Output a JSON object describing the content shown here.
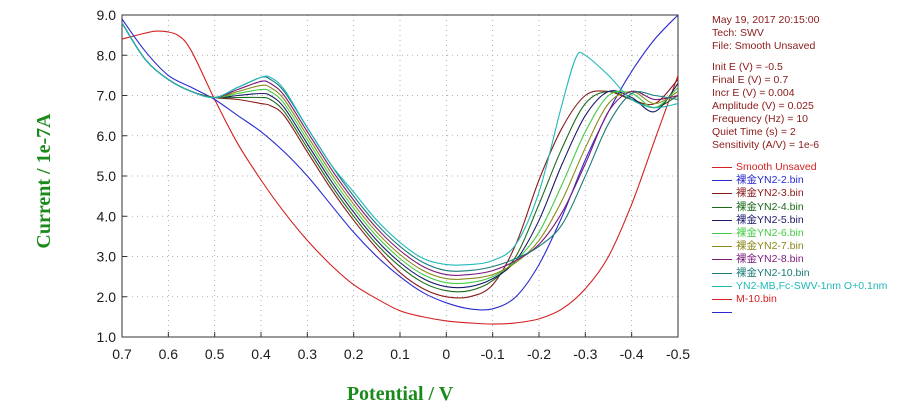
{
  "info": {
    "lines": [
      "May 19, 2017   20:15:00",
      "Tech: SWV",
      "File: Smooth Unsaved"
    ],
    "params": [
      "Init E (V) = -0.5",
      "Final E (V) = 0.7",
      "Incr E (V) = 0.004",
      "Amplitude (V) = 0.025",
      "Frequency (Hz) = 10",
      "Quiet Time (s) = 2",
      "Sensitivity (A/V) = 1e-6"
    ]
  },
  "footer": {
    "text": ""
  },
  "chart_data": {
    "type": "line",
    "xlabel": "Potential / V",
    "ylabel": "Current / 1e-7A",
    "xlim": [
      0.7,
      -0.5
    ],
    "ylim": [
      1.0,
      9.0
    ],
    "x_ticks": [
      "0.7",
      "0.6",
      "0.5",
      "0.4",
      "0.3",
      "0.2",
      "0.1",
      "0",
      "-0.1",
      "-0.2",
      "-0.3",
      "-0.4",
      "-0.5"
    ],
    "y_ticks": [
      "1.0",
      "2.0",
      "3.0",
      "4.0",
      "5.0",
      "6.0",
      "7.0",
      "8.0",
      "9.0"
    ],
    "grid": true,
    "legend_position": "right",
    "series": [
      {
        "name": "Smooth Unsaved",
        "color": "#d42020",
        "x": [
          0.7,
          0.65,
          0.62,
          0.58,
          0.55,
          0.5,
          0.45,
          0.4,
          0.35,
          0.3,
          0.25,
          0.2,
          0.15,
          0.1,
          0.05,
          0,
          -0.05,
          -0.1,
          -0.15,
          -0.2,
          -0.25,
          -0.3,
          -0.35,
          -0.4,
          -0.45,
          -0.5
        ],
        "y": [
          8.4,
          8.55,
          8.6,
          8.5,
          8.1,
          6.9,
          5.8,
          4.9,
          4.1,
          3.4,
          2.8,
          2.3,
          1.95,
          1.65,
          1.5,
          1.4,
          1.35,
          1.32,
          1.35,
          1.45,
          1.7,
          2.2,
          3.0,
          4.3,
          5.9,
          7.5
        ]
      },
      {
        "name": "裸金YN2-2.bin",
        "color": "#2a2ad0",
        "x": [
          0.7,
          0.65,
          0.6,
          0.55,
          0.5,
          0.45,
          0.4,
          0.35,
          0.3,
          0.25,
          0.2,
          0.15,
          0.1,
          0.05,
          0,
          -0.05,
          -0.1,
          -0.15,
          -0.2,
          -0.25,
          -0.3,
          -0.35,
          -0.4,
          -0.45,
          -0.5
        ],
        "y": [
          8.9,
          8.1,
          7.5,
          7.2,
          6.9,
          6.5,
          6.1,
          5.6,
          5.0,
          4.3,
          3.6,
          3.0,
          2.5,
          2.1,
          1.85,
          1.7,
          1.7,
          2.0,
          2.8,
          4.0,
          5.4,
          6.6,
          7.6,
          8.4,
          9.0
        ]
      },
      {
        "name": "裸金YN2-3.bin",
        "color": "#8b1a1a",
        "x": [
          0.7,
          0.65,
          0.6,
          0.55,
          0.5,
          0.45,
          0.4,
          0.38,
          0.35,
          0.3,
          0.25,
          0.2,
          0.15,
          0.1,
          0.05,
          0,
          -0.05,
          -0.1,
          -0.15,
          -0.2,
          -0.25,
          -0.3,
          -0.35,
          -0.4,
          -0.45,
          -0.5
        ],
        "y": [
          8.8,
          7.9,
          7.4,
          7.1,
          6.95,
          6.9,
          6.8,
          6.75,
          6.5,
          5.6,
          4.7,
          3.9,
          3.2,
          2.6,
          2.2,
          2.0,
          2.0,
          2.3,
          3.3,
          4.9,
          6.2,
          7.0,
          7.1,
          6.9,
          6.8,
          7.4
        ]
      },
      {
        "name": "裸金YN2-4.bin",
        "color": "#1a6a1a",
        "x": [
          0.7,
          0.65,
          0.6,
          0.55,
          0.5,
          0.45,
          0.4,
          0.38,
          0.35,
          0.3,
          0.25,
          0.2,
          0.15,
          0.1,
          0.05,
          0,
          -0.05,
          -0.1,
          -0.15,
          -0.2,
          -0.25,
          -0.3,
          -0.35,
          -0.4,
          -0.45,
          -0.5
        ],
        "y": [
          8.8,
          7.9,
          7.4,
          7.1,
          6.95,
          6.95,
          6.95,
          6.9,
          6.6,
          5.7,
          4.8,
          4.0,
          3.3,
          2.75,
          2.35,
          2.15,
          2.15,
          2.4,
          3.0,
          4.3,
          5.7,
          6.8,
          7.1,
          6.9,
          6.7,
          7.0
        ]
      },
      {
        "name": "裸金YN2-5.bin",
        "color": "#1a1a6a",
        "x": [
          0.7,
          0.65,
          0.6,
          0.55,
          0.5,
          0.45,
          0.4,
          0.38,
          0.35,
          0.3,
          0.25,
          0.2,
          0.15,
          0.1,
          0.05,
          0,
          -0.05,
          -0.1,
          -0.15,
          -0.2,
          -0.25,
          -0.3,
          -0.35,
          -0.4,
          -0.45,
          -0.5
        ],
        "y": [
          8.8,
          7.9,
          7.4,
          7.1,
          6.95,
          7.0,
          7.05,
          7.0,
          6.7,
          5.8,
          4.9,
          4.1,
          3.4,
          2.85,
          2.45,
          2.25,
          2.25,
          2.45,
          2.9,
          3.9,
          5.3,
          6.5,
          7.1,
          6.95,
          6.6,
          7.3
        ]
      },
      {
        "name": "裸金YN2-6.bin",
        "color": "#44cc44",
        "x": [
          0.7,
          0.65,
          0.6,
          0.55,
          0.5,
          0.45,
          0.4,
          0.38,
          0.35,
          0.3,
          0.25,
          0.2,
          0.15,
          0.1,
          0.05,
          0,
          -0.05,
          -0.1,
          -0.15,
          -0.2,
          -0.25,
          -0.3,
          -0.35,
          -0.4,
          -0.45,
          -0.5
        ],
        "y": [
          8.8,
          7.9,
          7.4,
          7.1,
          6.95,
          7.05,
          7.15,
          7.1,
          6.8,
          5.9,
          5.0,
          4.2,
          3.5,
          2.95,
          2.55,
          2.35,
          2.35,
          2.5,
          2.9,
          3.6,
          4.8,
          6.1,
          7.0,
          7.05,
          6.7,
          7.2
        ]
      },
      {
        "name": "裸金YN2-7.bin",
        "color": "#8a8a1a",
        "x": [
          0.7,
          0.65,
          0.6,
          0.55,
          0.5,
          0.45,
          0.4,
          0.38,
          0.35,
          0.3,
          0.25,
          0.2,
          0.15,
          0.1,
          0.05,
          0,
          -0.05,
          -0.1,
          -0.15,
          -0.2,
          -0.25,
          -0.3,
          -0.35,
          -0.4,
          -0.45,
          -0.5
        ],
        "y": [
          8.8,
          7.9,
          7.4,
          7.1,
          6.95,
          7.1,
          7.25,
          7.2,
          6.9,
          6.0,
          5.1,
          4.3,
          3.6,
          3.05,
          2.65,
          2.45,
          2.45,
          2.55,
          2.85,
          3.4,
          4.4,
          5.7,
          6.8,
          7.1,
          6.8,
          7.1
        ]
      },
      {
        "name": "裸金YN2-8.bin",
        "color": "#7a1a7a",
        "x": [
          0.7,
          0.65,
          0.6,
          0.55,
          0.5,
          0.45,
          0.4,
          0.38,
          0.35,
          0.3,
          0.25,
          0.2,
          0.15,
          0.1,
          0.05,
          0,
          -0.05,
          -0.1,
          -0.15,
          -0.2,
          -0.25,
          -0.3,
          -0.35,
          -0.4,
          -0.45,
          -0.5
        ],
        "y": [
          8.8,
          7.9,
          7.4,
          7.1,
          6.95,
          7.15,
          7.35,
          7.3,
          7.0,
          6.1,
          5.2,
          4.4,
          3.7,
          3.15,
          2.75,
          2.55,
          2.55,
          2.65,
          2.9,
          3.3,
          4.1,
          5.3,
          6.6,
          7.1,
          6.9,
          7.0
        ]
      },
      {
        "name": "裸金YN2-10.bin",
        "color": "#1a7a7a",
        "x": [
          0.7,
          0.65,
          0.6,
          0.55,
          0.5,
          0.45,
          0.4,
          0.38,
          0.35,
          0.3,
          0.25,
          0.2,
          0.15,
          0.1,
          0.05,
          0,
          -0.05,
          -0.1,
          -0.15,
          -0.2,
          -0.25,
          -0.3,
          -0.35,
          -0.4,
          -0.45,
          -0.5
        ],
        "y": [
          8.8,
          7.9,
          7.4,
          7.1,
          6.95,
          7.2,
          7.45,
          7.4,
          7.1,
          6.2,
          5.3,
          4.5,
          3.8,
          3.25,
          2.85,
          2.65,
          2.65,
          2.75,
          2.95,
          3.25,
          3.8,
          5.0,
          6.3,
          7.05,
          7.0,
          6.9
        ]
      },
      {
        "name": "YN2-MB,Fc-SWV-1nm O+0.1nm",
        "color": "#20b8b8",
        "x": [
          0.7,
          0.65,
          0.6,
          0.55,
          0.5,
          0.45,
          0.4,
          0.38,
          0.35,
          0.3,
          0.25,
          0.2,
          0.15,
          0.1,
          0.05,
          0,
          -0.05,
          -0.1,
          -0.15,
          -0.2,
          -0.25,
          -0.28,
          -0.3,
          -0.35,
          -0.4,
          -0.45,
          -0.5
        ],
        "y": [
          8.8,
          7.9,
          7.4,
          7.1,
          6.95,
          7.2,
          7.45,
          7.45,
          7.15,
          6.2,
          5.3,
          4.6,
          3.9,
          3.35,
          2.95,
          2.8,
          2.8,
          2.9,
          3.3,
          4.6,
          6.8,
          7.95,
          8.0,
          7.5,
          6.9,
          6.7,
          6.8
        ]
      },
      {
        "name": "M-10.bin",
        "color": "#d42020",
        "x": [],
        "y": []
      },
      {
        "name": "",
        "color": "#2a2ad0",
        "x": [],
        "y": []
      }
    ]
  }
}
